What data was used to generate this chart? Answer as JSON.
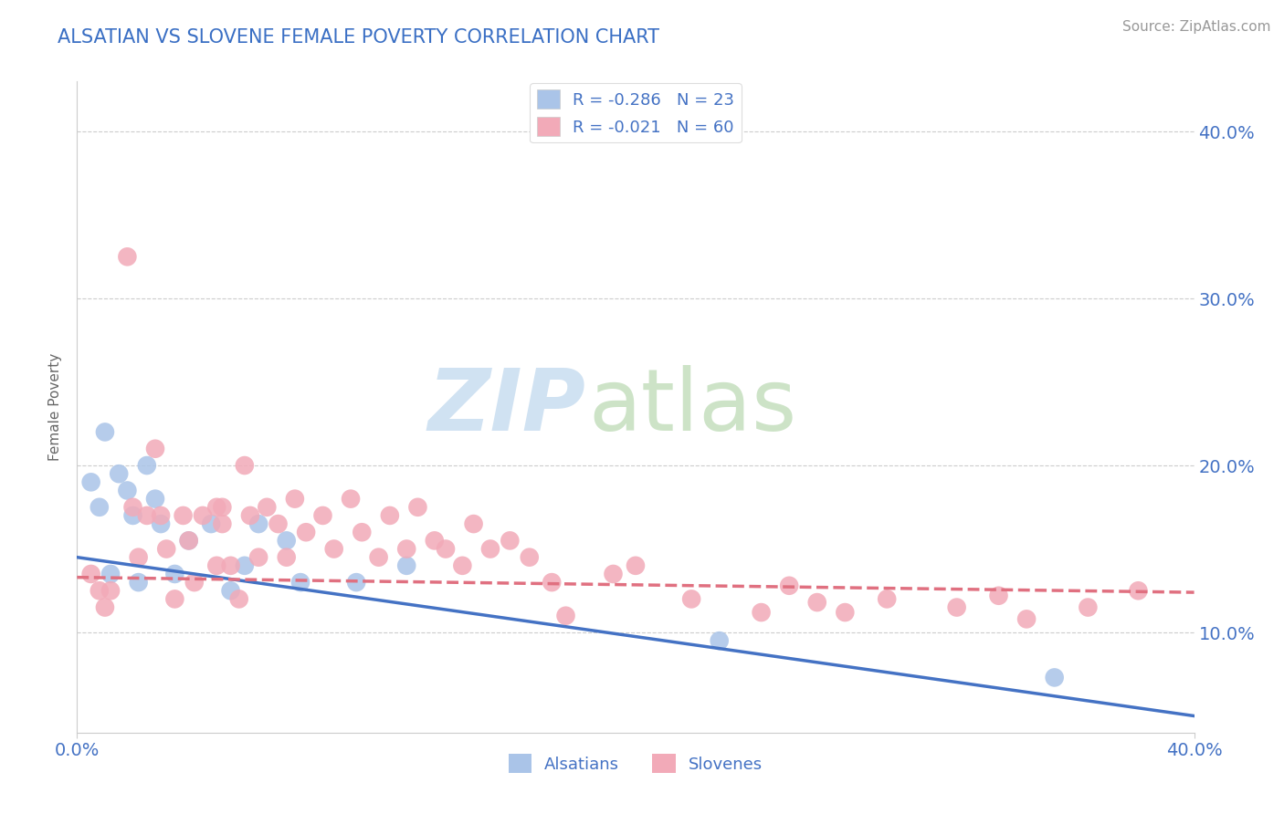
{
  "title": "ALSATIAN VS SLOVENE FEMALE POVERTY CORRELATION CHART",
  "source": "Source: ZipAtlas.com",
  "ylabel": "Female Poverty",
  "xmin": 0.0,
  "xmax": 0.4,
  "ymin": 0.04,
  "ymax": 0.43,
  "ytick_labels": [
    "10.0%",
    "20.0%",
    "30.0%",
    "40.0%"
  ],
  "ytick_vals": [
    0.1,
    0.2,
    0.3,
    0.4
  ],
  "xtick_labels": [
    "0.0%",
    "40.0%"
  ],
  "xtick_vals": [
    0.0,
    0.4
  ],
  "alsatian_R": -0.286,
  "alsatian_N": 23,
  "slovene_R": -0.021,
  "slovene_N": 60,
  "alsatian_color": "#aac4e8",
  "slovene_color": "#f2aab8",
  "alsatian_line_color": "#4472c4",
  "slovene_line_color": "#e07080",
  "title_color": "#3a6fc4",
  "source_color": "#999999",
  "alsatian_x": [
    0.005,
    0.008,
    0.01,
    0.012,
    0.015,
    0.018,
    0.02,
    0.022,
    0.025,
    0.028,
    0.03,
    0.035,
    0.04,
    0.048,
    0.055,
    0.06,
    0.065,
    0.075,
    0.08,
    0.1,
    0.118,
    0.23,
    0.35
  ],
  "alsatian_y": [
    0.19,
    0.175,
    0.22,
    0.135,
    0.195,
    0.185,
    0.17,
    0.13,
    0.2,
    0.18,
    0.165,
    0.135,
    0.155,
    0.165,
    0.125,
    0.14,
    0.165,
    0.155,
    0.13,
    0.13,
    0.14,
    0.095,
    0.073
  ],
  "slovene_x": [
    0.005,
    0.008,
    0.01,
    0.012,
    0.018,
    0.02,
    0.022,
    0.025,
    0.028,
    0.03,
    0.032,
    0.035,
    0.038,
    0.04,
    0.042,
    0.045,
    0.05,
    0.052,
    0.055,
    0.058,
    0.06,
    0.062,
    0.065,
    0.068,
    0.072,
    0.075,
    0.078,
    0.082,
    0.088,
    0.092,
    0.098,
    0.102,
    0.108,
    0.112,
    0.118,
    0.122,
    0.128,
    0.132,
    0.138,
    0.142,
    0.148,
    0.052,
    0.155,
    0.162,
    0.17,
    0.175,
    0.05,
    0.192,
    0.2,
    0.22,
    0.245,
    0.255,
    0.265,
    0.275,
    0.29,
    0.315,
    0.33,
    0.34,
    0.362,
    0.38
  ],
  "slovene_y": [
    0.135,
    0.125,
    0.115,
    0.125,
    0.325,
    0.175,
    0.145,
    0.17,
    0.21,
    0.17,
    0.15,
    0.12,
    0.17,
    0.155,
    0.13,
    0.17,
    0.175,
    0.165,
    0.14,
    0.12,
    0.2,
    0.17,
    0.145,
    0.175,
    0.165,
    0.145,
    0.18,
    0.16,
    0.17,
    0.15,
    0.18,
    0.16,
    0.145,
    0.17,
    0.15,
    0.175,
    0.155,
    0.15,
    0.14,
    0.165,
    0.15,
    0.175,
    0.155,
    0.145,
    0.13,
    0.11,
    0.14,
    0.135,
    0.14,
    0.12,
    0.112,
    0.128,
    0.118,
    0.112,
    0.12,
    0.115,
    0.122,
    0.108,
    0.115,
    0.125
  ],
  "line_al_x0": 0.0,
  "line_al_x1": 0.4,
  "line_al_y0": 0.145,
  "line_al_y1": 0.05,
  "line_sl_x0": 0.0,
  "line_sl_x1": 0.4,
  "line_sl_y0": 0.133,
  "line_sl_y1": 0.124
}
